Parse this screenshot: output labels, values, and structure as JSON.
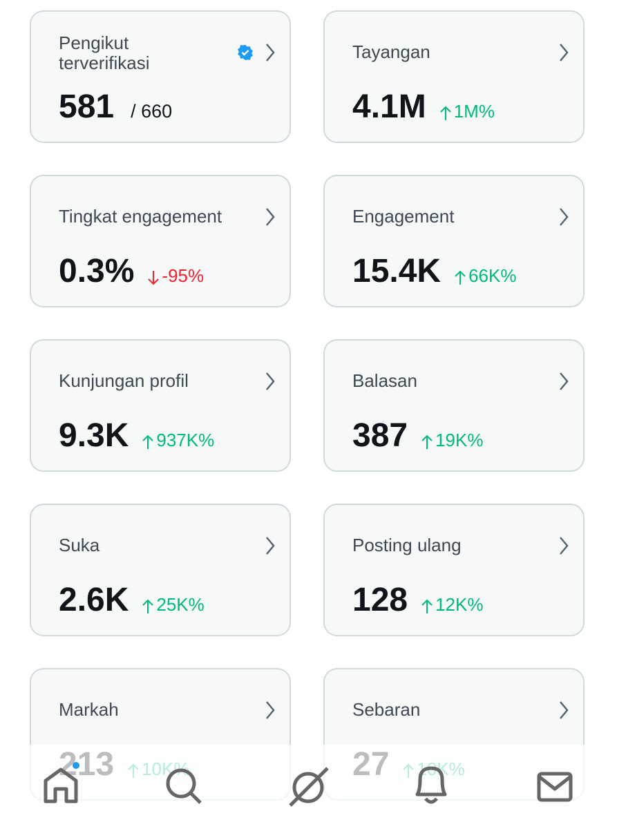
{
  "cards": [
    {
      "label": "Pengikut terverifikasi",
      "value": "581",
      "total": "/ 660",
      "verified": true
    },
    {
      "label": "Tayangan",
      "value": "4.1M",
      "change": "1M%",
      "trend": "up"
    },
    {
      "label": "Tingkat engagement",
      "value": "0.3%",
      "change": "-95%",
      "trend": "down"
    },
    {
      "label": "Engagement",
      "value": "15.4K",
      "change": "66K%",
      "trend": "up"
    },
    {
      "label": "Kunjungan profil",
      "value": "9.3K",
      "change": "937K%",
      "trend": "up"
    },
    {
      "label": "Balasan",
      "value": "387",
      "change": "19K%",
      "trend": "up"
    },
    {
      "label": "Suka",
      "value": "2.6K",
      "change": "25K%",
      "trend": "up"
    },
    {
      "label": "Posting ulang",
      "value": "128",
      "change": "12K%",
      "trend": "up"
    },
    {
      "label": "Markah",
      "value": "213",
      "change": "10K%",
      "trend": "up"
    },
    {
      "label": "Sebaran",
      "value": "27",
      "change": "10K%",
      "trend": "up"
    }
  ]
}
